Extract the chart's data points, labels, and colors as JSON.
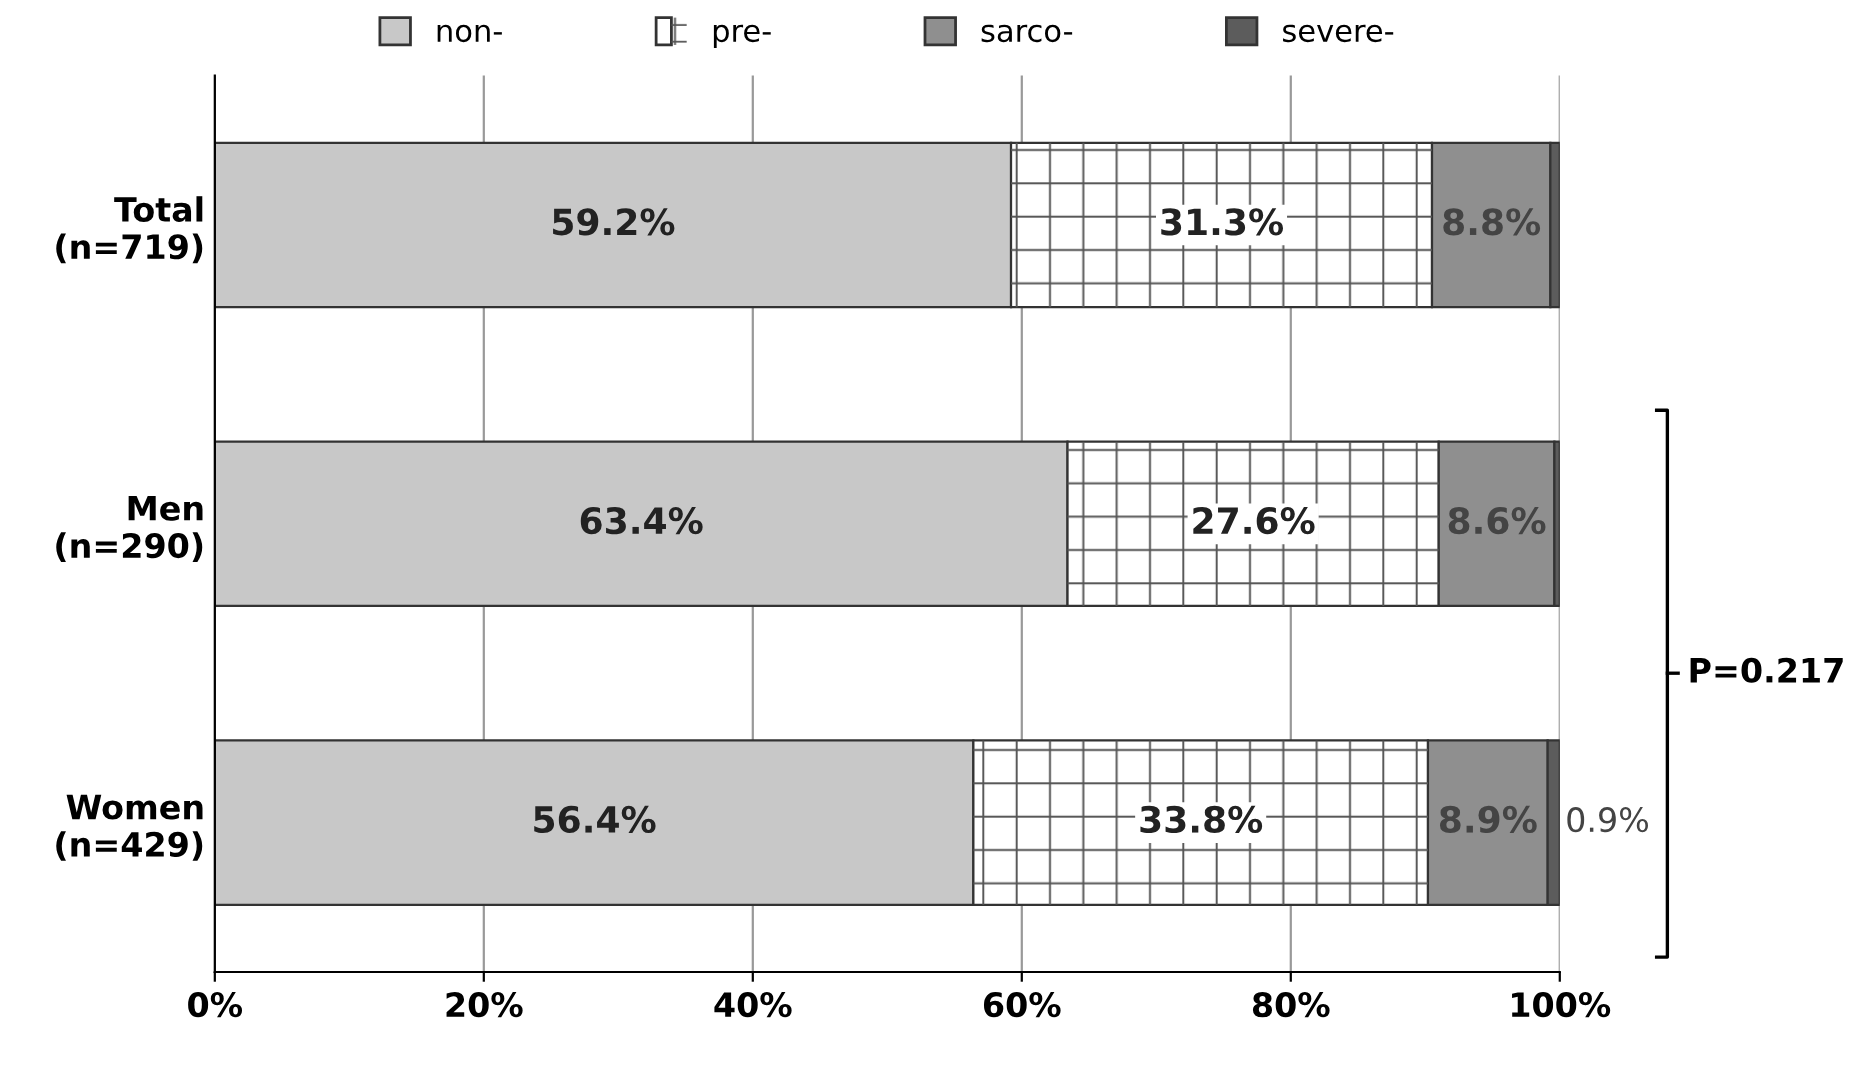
{
  "chart_data": {
    "type": "bar",
    "orientation": "horizontal",
    "stacked": true,
    "categories": [
      "Total\n(n=719)",
      "Men\n(n=290)",
      "Women\n(n=429)"
    ],
    "series": [
      {
        "name": "non-",
        "color": "#c8c8c8",
        "values": [
          59.2,
          63.4,
          56.4
        ],
        "value_labels": [
          "59.2%",
          "63.4%",
          "56.4%"
        ]
      },
      {
        "name": "pre-",
        "color": "#ffffff",
        "values": [
          31.3,
          27.6,
          33.8
        ],
        "value_labels": [
          "31.3%",
          "27.6%",
          "33.8%"
        ]
      },
      {
        "name": "sarco-",
        "color": "#8f8f8f",
        "values": [
          8.8,
          8.6,
          8.9
        ],
        "value_labels": [
          "8.8%",
          "8.6%",
          "8.9%"
        ]
      },
      {
        "name": "severe-",
        "color": "#5c5c5c",
        "values": [
          0.7,
          0.4,
          0.9
        ],
        "value_labels": [
          null,
          null,
          "0.9%"
        ]
      }
    ],
    "xlim": [
      0,
      100
    ],
    "xticks": [
      {
        "value": 0,
        "label": "0%"
      },
      {
        "value": 20,
        "label": "20%"
      },
      {
        "value": 40,
        "label": "40%"
      },
      {
        "value": 60,
        "label": "60%"
      },
      {
        "value": 80,
        "label": "80%"
      },
      {
        "value": 100,
        "label": "100%"
      }
    ],
    "grid": "x",
    "legend": "top",
    "annotations": [
      "P=0.217"
    ]
  }
}
